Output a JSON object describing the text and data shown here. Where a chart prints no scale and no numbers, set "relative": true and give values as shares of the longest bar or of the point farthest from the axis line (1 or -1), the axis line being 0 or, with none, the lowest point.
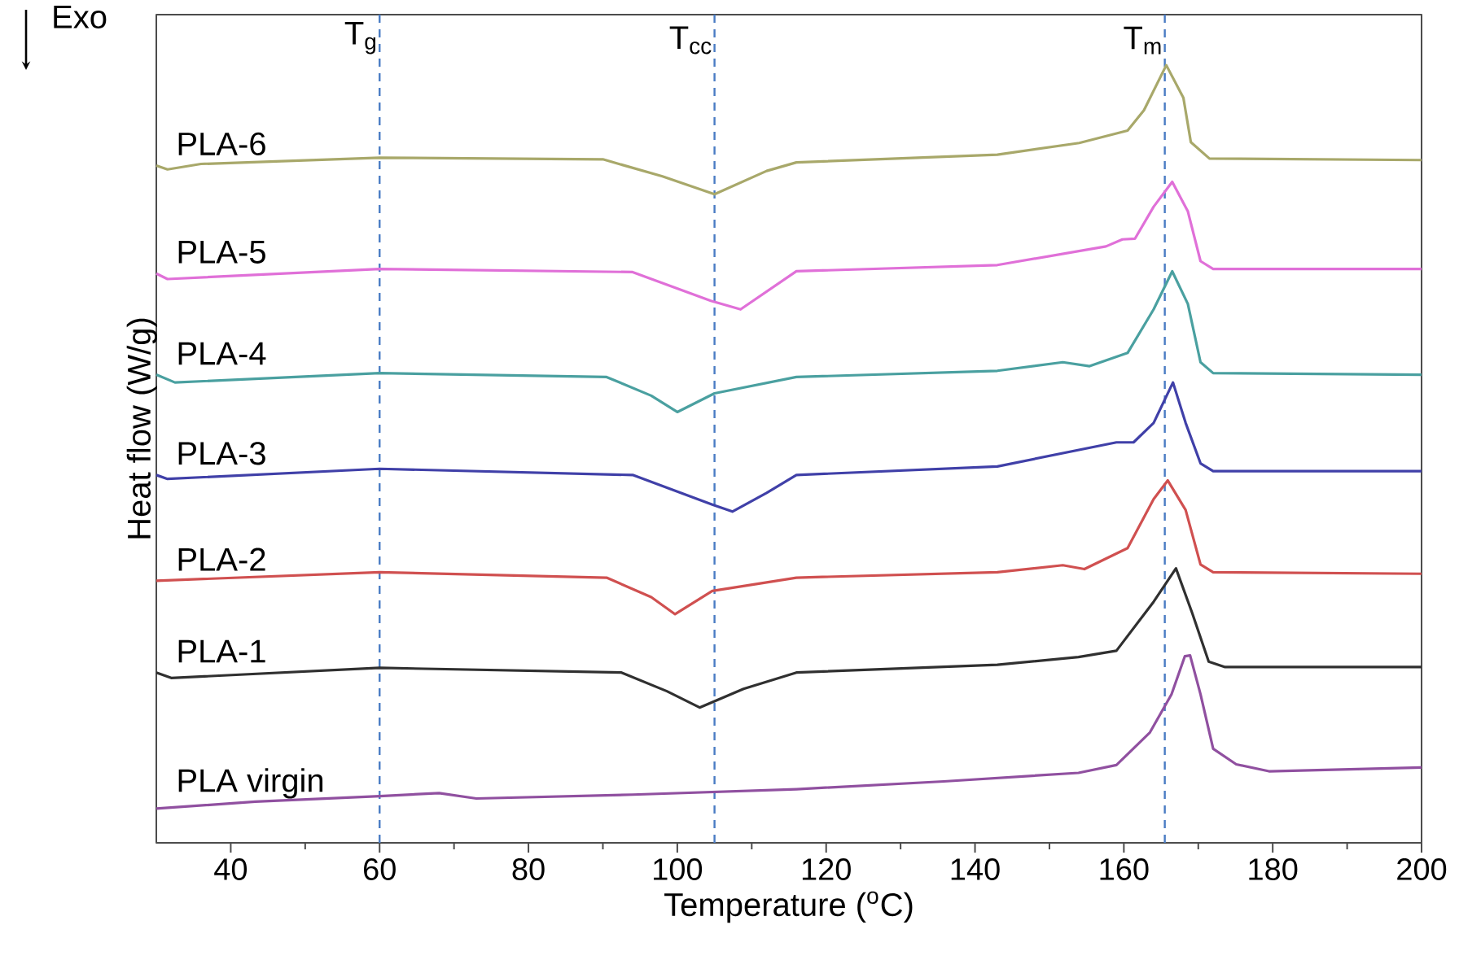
{
  "chart_data": {
    "type": "line",
    "relative": true,
    "xlabel": "Temperature ($^{o}$C)",
    "ylabel": "Heat flow (W/g)",
    "annotations": [
      "Exo"
    ],
    "xlim": [
      30,
      200
    ],
    "xticks": [
      40,
      60,
      80,
      100,
      120,
      140,
      160,
      180,
      200
    ],
    "legend": false,
    "grid": false,
    "marker": "none",
    "line_style": "solid",
    "ref_lines": [
      {
        "axis": "x",
        "value": 60,
        "label": "T$_{g}$",
        "color": "#4a7cc4",
        "line_style": "dashed"
      },
      {
        "axis": "x",
        "value": 105,
        "label": "T$_{cc}$",
        "color": "#4a7cc4",
        "line_style": "dashed"
      },
      {
        "axis": "x",
        "value": 165.5,
        "label": "T$_{m}$",
        "color": "#4a7cc4",
        "line_style": "dashed"
      }
    ],
    "series": [
      {
        "name": "PLA-6",
        "color": "#a8a86a",
        "x": [
          30,
          31.5,
          36,
          60,
          90,
          98,
          105,
          112,
          116,
          143,
          154,
          160.5,
          162.7,
          165.7,
          168,
          169,
          171.5,
          200
        ],
        "values": [
          0.871,
          0.866,
          0.873,
          0.881,
          0.879,
          0.857,
          0.834,
          0.864,
          0.875,
          0.885,
          0.9,
          0.916,
          0.942,
          1.0,
          0.958,
          0.901,
          0.88,
          0.878
        ]
      },
      {
        "name": "PLA-5",
        "color": "#e070d8",
        "x": [
          30,
          31.5,
          60,
          94,
          104.5,
          108.5,
          116,
          143,
          157.6,
          159.8,
          161.5,
          164,
          166.5,
          168.6,
          170.3,
          172,
          200
        ],
        "values": [
          0.732,
          0.725,
          0.738,
          0.734,
          0.697,
          0.686,
          0.735,
          0.743,
          0.767,
          0.776,
          0.777,
          0.818,
          0.85,
          0.812,
          0.748,
          0.738,
          0.738
        ]
      },
      {
        "name": "PLA-4",
        "color": "#4aa0a0",
        "x": [
          30,
          32.5,
          60,
          90.5,
          96.5,
          100,
          105,
          116,
          143,
          151.8,
          155.4,
          160.5,
          164,
          166.5,
          168.6,
          170.3,
          172,
          200
        ],
        "values": [
          0.602,
          0.592,
          0.604,
          0.599,
          0.575,
          0.554,
          0.578,
          0.599,
          0.607,
          0.618,
          0.613,
          0.63,
          0.686,
          0.735,
          0.693,
          0.618,
          0.604,
          0.602
        ]
      },
      {
        "name": "PLA-3",
        "color": "#4040a8",
        "x": [
          30,
          31.5,
          60,
          94,
          104.7,
          107.4,
          112,
          116,
          143,
          159,
          161.3,
          164,
          166.6,
          168.3,
          170.3,
          172,
          200
        ],
        "values": [
          0.473,
          0.468,
          0.481,
          0.473,
          0.435,
          0.426,
          0.45,
          0.473,
          0.484,
          0.515,
          0.515,
          0.54,
          0.592,
          0.54,
          0.488,
          0.478,
          0.478
        ]
      },
      {
        "name": "PLA-2",
        "color": "#d05050",
        "x": [
          30,
          60,
          90.5,
          96.5,
          99.7,
          104.7,
          116,
          143,
          151.8,
          154.7,
          160.5,
          164,
          165.9,
          168.3,
          170.3,
          172,
          200
        ],
        "values": [
          0.337,
          0.348,
          0.341,
          0.316,
          0.294,
          0.324,
          0.341,
          0.348,
          0.357,
          0.352,
          0.379,
          0.442,
          0.466,
          0.428,
          0.358,
          0.348,
          0.346
        ]
      },
      {
        "name": "PLA-1",
        "color": "#303030",
        "x": [
          30,
          32,
          60,
          92.5,
          98.6,
          103,
          108.9,
          116,
          143,
          153.9,
          159,
          164,
          167,
          169.2,
          171.4,
          173.6,
          200
        ],
        "values": [
          0.219,
          0.212,
          0.225,
          0.219,
          0.195,
          0.174,
          0.198,
          0.219,
          0.229,
          0.239,
          0.247,
          0.31,
          0.353,
          0.295,
          0.233,
          0.226,
          0.226
        ]
      },
      {
        "name": "PLA virgin",
        "color": "#9050a0",
        "x": [
          30,
          43.3,
          60,
          68,
          73,
          94,
          116,
          135.8,
          153.9,
          159,
          163.5,
          166.4,
          168.2,
          168.9,
          170.3,
          172,
          175.1,
          179.5,
          200
        ],
        "values": [
          0.044,
          0.053,
          0.06,
          0.064,
          0.057,
          0.062,
          0.069,
          0.079,
          0.09,
          0.1,
          0.142,
          0.191,
          0.24,
          0.241,
          0.191,
          0.121,
          0.101,
          0.092,
          0.097
        ]
      }
    ]
  }
}
